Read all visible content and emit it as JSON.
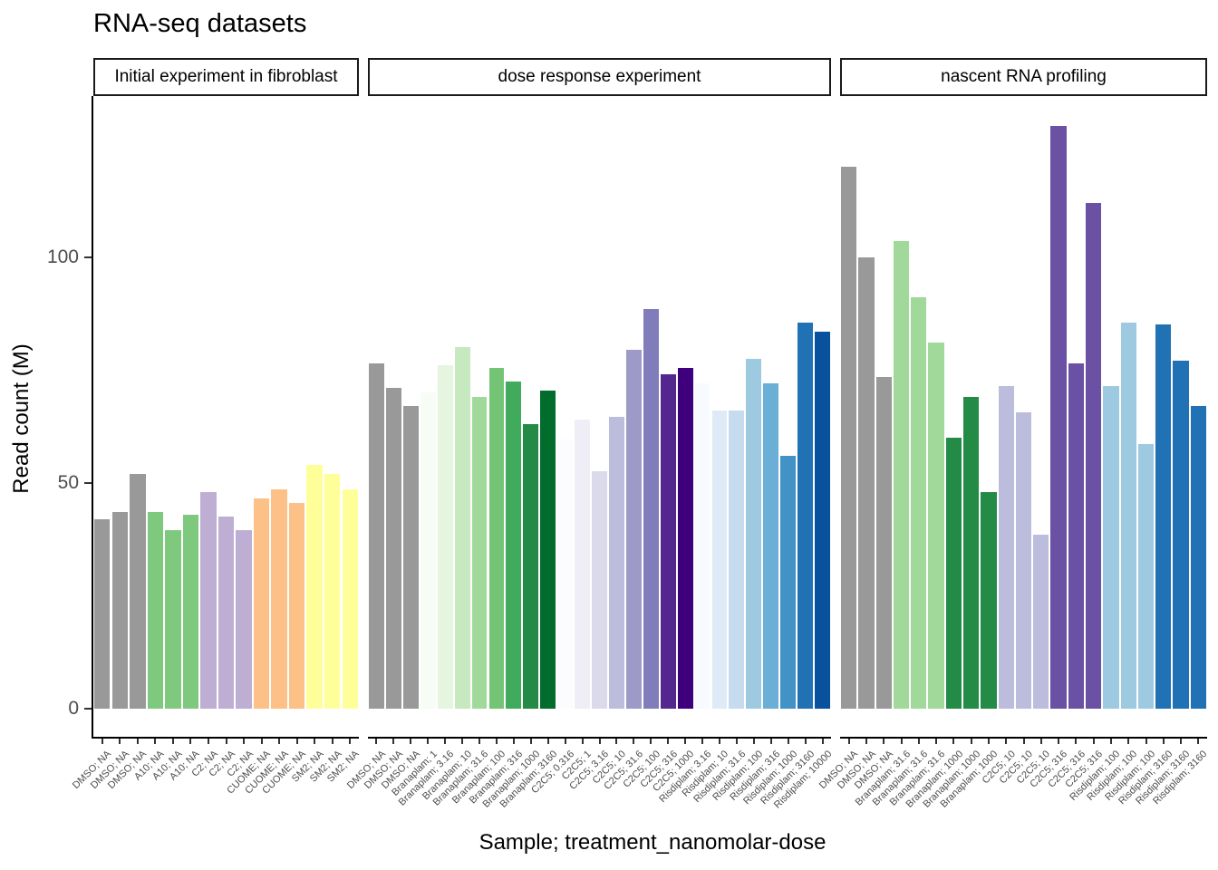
{
  "chart_data": {
    "type": "bar",
    "title": "RNA-seq datasets",
    "xlabel": "Sample; treatment_nanomolar-dose",
    "ylabel": "Read count (M)",
    "ylim": [
      0,
      135
    ],
    "y_ticks": [
      0,
      50,
      100
    ],
    "grid": false,
    "legend": "none",
    "facets": [
      {
        "label": "Initial experiment in fibroblast",
        "bars": [
          {
            "label": "DMSO; NA",
            "value": 42,
            "color": "#999999"
          },
          {
            "label": "DMSO; NA",
            "value": 43.5,
            "color": "#999999"
          },
          {
            "label": "DMSO; NA",
            "value": 52,
            "color": "#999999"
          },
          {
            "label": "A10; NA",
            "value": 43.5,
            "color": "#7FC97F"
          },
          {
            "label": "A10; NA",
            "value": 39.5,
            "color": "#7FC97F"
          },
          {
            "label": "A10; NA",
            "value": 43,
            "color": "#7FC97F"
          },
          {
            "label": "C2; NA",
            "value": 48,
            "color": "#BEAED4"
          },
          {
            "label": "C2; NA",
            "value": 42.5,
            "color": "#BEAED4"
          },
          {
            "label": "C2; NA",
            "value": 39.5,
            "color": "#BEAED4"
          },
          {
            "label": "CUOME; NA",
            "value": 46.5,
            "color": "#FDC086"
          },
          {
            "label": "CUOME; NA",
            "value": 48.5,
            "color": "#FDC086"
          },
          {
            "label": "CUOME; NA",
            "value": 45.5,
            "color": "#FDC086"
          },
          {
            "label": "SM2; NA",
            "value": 54,
            "color": "#FFFF99"
          },
          {
            "label": "SM2; NA",
            "value": 52,
            "color": "#FFFF99"
          },
          {
            "label": "SM2; NA",
            "value": 48.5,
            "color": "#FFFF99"
          }
        ]
      },
      {
        "label": "dose response experiment",
        "bars": [
          {
            "label": "DMSO; NA",
            "value": 76.5,
            "color": "#999999"
          },
          {
            "label": "DMSO; NA",
            "value": 71,
            "color": "#999999"
          },
          {
            "label": "DMSO; NA",
            "value": 67,
            "color": "#999999"
          },
          {
            "label": "Branaplam; 1",
            "value": 70,
            "color": "#F7FCF5"
          },
          {
            "label": "Branaplam; 3.16",
            "value": 76,
            "color": "#E5F5E0"
          },
          {
            "label": "Branaplam; 10",
            "value": 80,
            "color": "#C7E9C0"
          },
          {
            "label": "Branaplam; 31.6",
            "value": 69,
            "color": "#A1D99B"
          },
          {
            "label": "Branaplam; 100",
            "value": 75.5,
            "color": "#74C476"
          },
          {
            "label": "Branaplam; 316",
            "value": 72.5,
            "color": "#41AB5D"
          },
          {
            "label": "Branaplam; 1000",
            "value": 63,
            "color": "#238B45"
          },
          {
            "label": "Branaplam; 3160",
            "value": 70.5,
            "color": "#006D2C"
          },
          {
            "label": "C2C5; 0.316",
            "value": 59.5,
            "color": "#FCFBFD"
          },
          {
            "label": "C2C5; 1",
            "value": 64,
            "color": "#EFEDF5"
          },
          {
            "label": "C2C5; 3.16",
            "value": 52.5,
            "color": "#DADAEB"
          },
          {
            "label": "C2C5; 10",
            "value": 64.5,
            "color": "#BCBDDC"
          },
          {
            "label": "C2C5; 31.6",
            "value": 79.5,
            "color": "#9E9AC8"
          },
          {
            "label": "C2C5; 100",
            "value": 88.5,
            "color": "#807DBA"
          },
          {
            "label": "C2C5; 316",
            "value": 74,
            "color": "#54278F"
          },
          {
            "label": "C2C5; 1000",
            "value": 75.5,
            "color": "#3F007D"
          },
          {
            "label": "Risdiplam; 3.16",
            "value": 72,
            "color": "#F7FBFF"
          },
          {
            "label": "Risdiplam; 10",
            "value": 66,
            "color": "#DEEBF7"
          },
          {
            "label": "Risdiplam; 31.6",
            "value": 66,
            "color": "#C6DBEF"
          },
          {
            "label": "Risdiplam; 100",
            "value": 77.5,
            "color": "#9ECAE1"
          },
          {
            "label": "Risdiplam; 316",
            "value": 72,
            "color": "#6BAED6"
          },
          {
            "label": "Risdiplam; 1000",
            "value": 56,
            "color": "#4292C6"
          },
          {
            "label": "Risdiplam; 3160",
            "value": 85.5,
            "color": "#2171B5"
          },
          {
            "label": "Risdiplam; 10000",
            "value": 83.5,
            "color": "#08519C"
          }
        ]
      },
      {
        "label": "nascent RNA profiling",
        "bars": [
          {
            "label": "DMSO; NA",
            "value": 120,
            "color": "#999999"
          },
          {
            "label": "DMSO; NA",
            "value": 100,
            "color": "#999999"
          },
          {
            "label": "DMSO; NA",
            "value": 73.5,
            "color": "#999999"
          },
          {
            "label": "Branaplam; 31.6",
            "value": 103.5,
            "color": "#A1D99B"
          },
          {
            "label": "Branaplam; 31.6",
            "value": 91,
            "color": "#A1D99B"
          },
          {
            "label": "Branaplam; 31.6",
            "value": 81,
            "color": "#A1D99B"
          },
          {
            "label": "Branaplam; 1000",
            "value": 60,
            "color": "#238B45"
          },
          {
            "label": "Branaplam; 1000",
            "value": 69,
            "color": "#238B45"
          },
          {
            "label": "Branaplam; 1000",
            "value": 48,
            "color": "#238B45"
          },
          {
            "label": "C2C5; 10",
            "value": 71.5,
            "color": "#BCBDDC"
          },
          {
            "label": "C2C5; 10",
            "value": 65.5,
            "color": "#BCBDDC"
          },
          {
            "label": "C2C5; 10",
            "value": 38.5,
            "color": "#BCBDDC"
          },
          {
            "label": "C2C5; 316",
            "value": 129,
            "color": "#6A51A3"
          },
          {
            "label": "C2C5; 316",
            "value": 76.5,
            "color": "#6A51A3"
          },
          {
            "label": "C2C5; 316",
            "value": 112,
            "color": "#6A51A3"
          },
          {
            "label": "Risdiplam; 100",
            "value": 71.5,
            "color": "#9ECAE1"
          },
          {
            "label": "Risdiplam; 100",
            "value": 85.5,
            "color": "#9ECAE1"
          },
          {
            "label": "Risdiplam; 100",
            "value": 58.5,
            "color": "#9ECAE1"
          },
          {
            "label": "Risdiplam; 3160",
            "value": 85,
            "color": "#2171B5"
          },
          {
            "label": "Risdiplam; 3160",
            "value": 77,
            "color": "#2171B5"
          },
          {
            "label": "Risdiplam; 3160",
            "value": 67,
            "color": "#2171B5"
          }
        ]
      }
    ]
  }
}
